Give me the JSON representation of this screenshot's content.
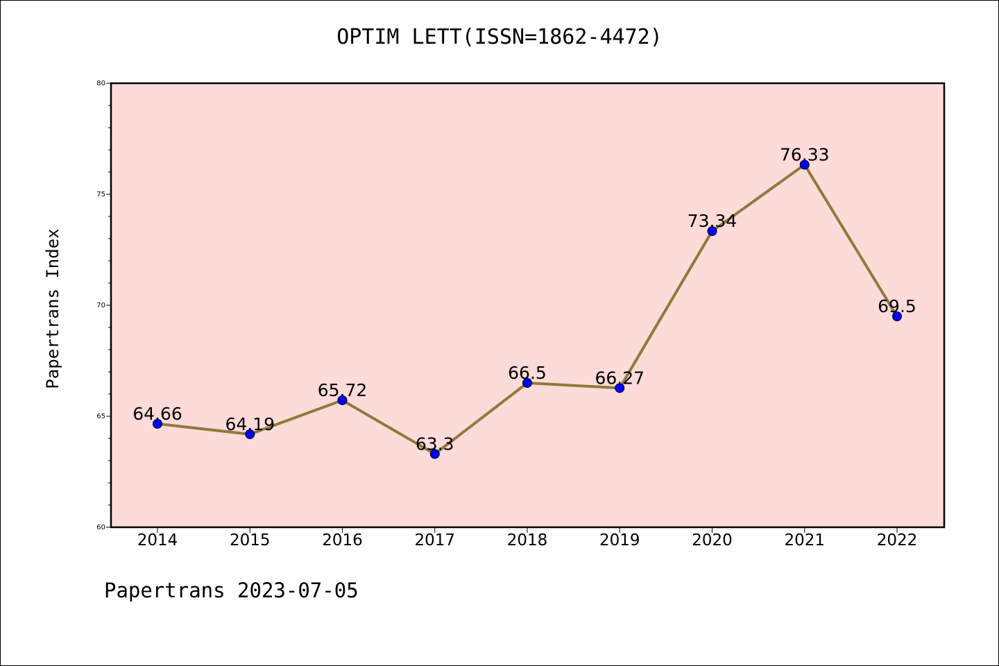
{
  "title": "OPTIM LETT(ISSN=1862-4472)",
  "footer": "Papertrans 2023-07-05",
  "colors": {
    "plot_background": "#fddbd9",
    "line": "#917a3a",
    "marker": "#0000ff"
  },
  "chart_data": {
    "type": "line",
    "title": "OPTIM LETT(ISSN=1862-4472)",
    "xlabel": "",
    "ylabel": "Papertrans Index",
    "categories": [
      "2014",
      "2015",
      "2016",
      "2017",
      "2018",
      "2019",
      "2020",
      "2021",
      "2022"
    ],
    "series": [
      {
        "values": [
          64.66,
          64.19,
          65.72,
          63.3,
          66.5,
          66.27,
          73.34,
          76.33,
          69.5
        ],
        "labels": [
          "64.66",
          "64.19",
          "65.72",
          "63.3",
          "66.5",
          "66.27",
          "73.34",
          "76.33",
          "69.5"
        ]
      }
    ],
    "ylim": [
      60,
      80
    ],
    "yticks": [
      "60",
      "65",
      "70",
      "75",
      "80"
    ],
    "grid": false,
    "legend": "none"
  }
}
